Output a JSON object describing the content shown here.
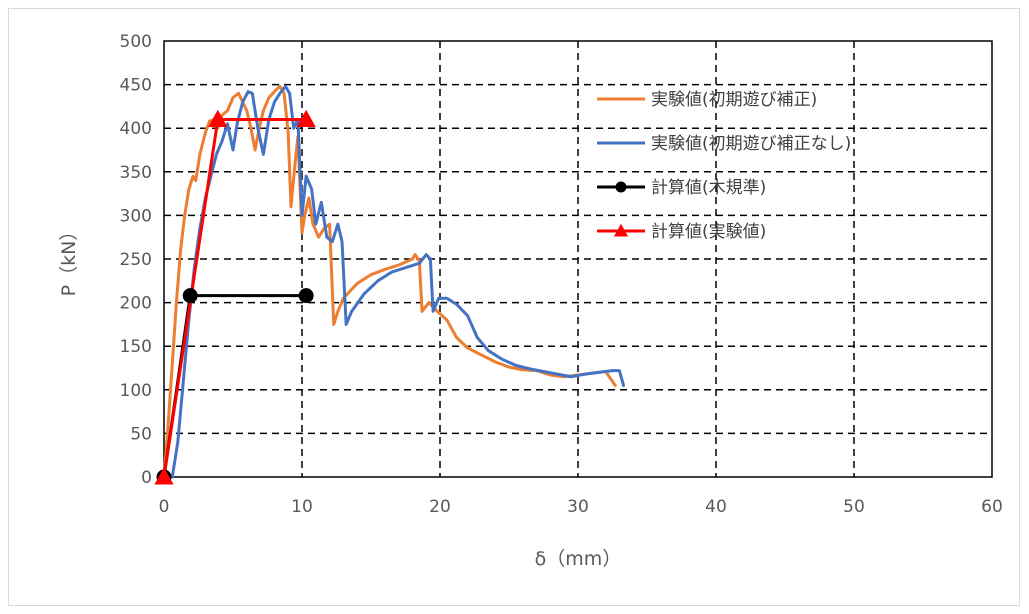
{
  "chart_data": {
    "type": "line",
    "title": "",
    "xlabel": "δ（mm）",
    "ylabel": "P（kN）",
    "xlim": [
      0,
      60
    ],
    "ylim": [
      0,
      500
    ],
    "xticks": [
      0,
      10,
      20,
      30,
      40,
      50,
      60
    ],
    "yticks": [
      0,
      50,
      100,
      150,
      200,
      250,
      300,
      350,
      400,
      450,
      500
    ],
    "grid": "dashed",
    "legend_position": "top-right",
    "series": [
      {
        "name": "実験値(初期遊び補正)",
        "color": "#ED7D31",
        "marker": "none",
        "points": [
          [
            0,
            0
          ],
          [
            0.3,
            60
          ],
          [
            0.6,
            130
          ],
          [
            0.9,
            200
          ],
          [
            1.2,
            260
          ],
          [
            1.5,
            300
          ],
          [
            1.8,
            330
          ],
          [
            2.1,
            345
          ],
          [
            2.3,
            340
          ],
          [
            2.6,
            370
          ],
          [
            3.0,
            395
          ],
          [
            3.3,
            408
          ],
          [
            3.6,
            410
          ],
          [
            3.9,
            400
          ],
          [
            4.2,
            415
          ],
          [
            4.6,
            420
          ],
          [
            5.0,
            435
          ],
          [
            5.4,
            440
          ],
          [
            5.7,
            430
          ],
          [
            6.0,
            420
          ],
          [
            6.3,
            400
          ],
          [
            6.6,
            375
          ],
          [
            6.9,
            400
          ],
          [
            7.2,
            420
          ],
          [
            7.6,
            435
          ],
          [
            8.0,
            442
          ],
          [
            8.4,
            448
          ],
          [
            8.7,
            440
          ],
          [
            9.0,
            395
          ],
          [
            9.2,
            310
          ],
          [
            9.5,
            360
          ],
          [
            9.7,
            390
          ],
          [
            10.0,
            280
          ],
          [
            10.2,
            300
          ],
          [
            10.5,
            320
          ],
          [
            10.8,
            290
          ],
          [
            11.2,
            275
          ],
          [
            11.6,
            285
          ],
          [
            12.0,
            290
          ],
          [
            12.3,
            175
          ],
          [
            12.6,
            190
          ],
          [
            13.0,
            205
          ],
          [
            14.0,
            222
          ],
          [
            15.0,
            232
          ],
          [
            16.0,
            238
          ],
          [
            17.0,
            243
          ],
          [
            18.0,
            250
          ],
          [
            18.2,
            255
          ],
          [
            18.5,
            248
          ],
          [
            18.7,
            190
          ],
          [
            19.2,
            200
          ],
          [
            19.8,
            190
          ],
          [
            20.5,
            180
          ],
          [
            21.2,
            160
          ],
          [
            22.0,
            148
          ],
          [
            23.0,
            140
          ],
          [
            24.0,
            132
          ],
          [
            25.0,
            126
          ],
          [
            26.0,
            123
          ],
          [
            27.0,
            122
          ],
          [
            28.0,
            117
          ],
          [
            29.0,
            115
          ],
          [
            30.0,
            117
          ],
          [
            31.0,
            119
          ],
          [
            32.0,
            121
          ],
          [
            32.7,
            105
          ]
        ]
      },
      {
        "name": "実験値(初期遊び補正なし)",
        "color": "#4472C4",
        "marker": "none",
        "points": [
          [
            0,
            0
          ],
          [
            0.6,
            0
          ],
          [
            1.0,
            40
          ],
          [
            1.4,
            110
          ],
          [
            1.8,
            180
          ],
          [
            2.2,
            240
          ],
          [
            2.6,
            285
          ],
          [
            3.0,
            320
          ],
          [
            3.4,
            345
          ],
          [
            3.8,
            370
          ],
          [
            4.2,
            385
          ],
          [
            4.6,
            405
          ],
          [
            5.0,
            375
          ],
          [
            5.3,
            405
          ],
          [
            5.7,
            430
          ],
          [
            6.1,
            442
          ],
          [
            6.4,
            440
          ],
          [
            6.8,
            400
          ],
          [
            7.2,
            370
          ],
          [
            7.6,
            410
          ],
          [
            8.0,
            430
          ],
          [
            8.4,
            440
          ],
          [
            8.8,
            448
          ],
          [
            9.1,
            440
          ],
          [
            9.4,
            400
          ],
          [
            9.7,
            410
          ],
          [
            10.0,
            300
          ],
          [
            10.3,
            345
          ],
          [
            10.7,
            330
          ],
          [
            11.0,
            290
          ],
          [
            11.4,
            315
          ],
          [
            11.8,
            275
          ],
          [
            12.2,
            270
          ],
          [
            12.6,
            290
          ],
          [
            12.9,
            270
          ],
          [
            13.2,
            175
          ],
          [
            13.6,
            190
          ],
          [
            14.5,
            210
          ],
          [
            15.5,
            225
          ],
          [
            16.5,
            235
          ],
          [
            17.5,
            240
          ],
          [
            18.5,
            245
          ],
          [
            19.0,
            255
          ],
          [
            19.3,
            250
          ],
          [
            19.5,
            190
          ],
          [
            19.9,
            205
          ],
          [
            20.5,
            205
          ],
          [
            21.2,
            198
          ],
          [
            22.0,
            185
          ],
          [
            22.7,
            160
          ],
          [
            23.5,
            145
          ],
          [
            24.5,
            135
          ],
          [
            25.5,
            128
          ],
          [
            26.5,
            124
          ],
          [
            27.5,
            121
          ],
          [
            28.5,
            118
          ],
          [
            29.5,
            115
          ],
          [
            30.5,
            118
          ],
          [
            31.5,
            120
          ],
          [
            32.5,
            122
          ],
          [
            33.0,
            122
          ],
          [
            33.3,
            105
          ]
        ]
      },
      {
        "name": "計算値(木規準)",
        "color": "#000000",
        "marker": "circle",
        "points": [
          [
            0,
            0
          ],
          [
            1.9,
            208
          ],
          [
            10.3,
            208
          ]
        ]
      },
      {
        "name": "計算値(実験値)",
        "color": "#FF0000",
        "marker": "triangle",
        "points": [
          [
            0,
            0
          ],
          [
            3.9,
            410
          ],
          [
            10.3,
            410
          ]
        ]
      }
    ]
  }
}
